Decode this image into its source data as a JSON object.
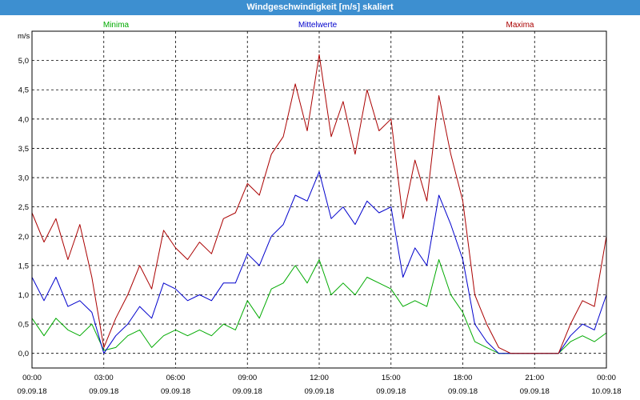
{
  "window": {
    "title": "Windgeschwindigkeit [m/s] skaliert"
  },
  "chart_data": {
    "type": "line",
    "title": "Windgeschwindigkeit [m/s] skaliert",
    "ylabel": "m/s",
    "xlabel": "",
    "ylim": [
      -0.25,
      5.5
    ],
    "yticks": [
      0.0,
      0.5,
      1.0,
      1.5,
      2.0,
      2.5,
      3.0,
      3.5,
      4.0,
      4.5,
      5.0
    ],
    "ytick_labels": [
      "0,0",
      "0,5",
      "1,0",
      "1,5",
      "2,0",
      "2,5",
      "3,0",
      "3,5",
      "4,0",
      "4,5",
      "5,0"
    ],
    "xlim_hours": [
      0,
      24
    ],
    "xticks_hours": [
      0,
      3,
      6,
      9,
      12,
      15,
      18,
      21,
      24
    ],
    "xtick_times": [
      "00:00",
      "03:00",
      "06:00",
      "09:00",
      "12:00",
      "15:00",
      "18:00",
      "21:00",
      "00:00"
    ],
    "xtick_dates": [
      "09.09.18",
      "09.09.18",
      "09.09.18",
      "09.09.18",
      "09.09.18",
      "09.09.18",
      "09.09.18",
      "09.09.18",
      "10.09.18"
    ],
    "grid": true,
    "legend_position": "top",
    "series": [
      {
        "name": "Minima",
        "color": "#00aa00",
        "x": [
          0,
          0.5,
          1,
          1.5,
          2,
          2.5,
          3,
          3.5,
          4,
          4.5,
          5,
          5.5,
          6,
          6.5,
          7,
          7.5,
          8,
          8.5,
          9,
          9.5,
          10,
          10.5,
          11,
          11.5,
          12,
          12.5,
          13,
          13.5,
          14,
          14.5,
          15,
          15.5,
          16,
          16.5,
          17,
          17.5,
          18,
          18.5,
          19,
          19.5,
          20,
          20.5,
          21,
          21.5,
          22,
          22.5,
          23,
          23.5,
          24
        ],
        "values": [
          0.6,
          0.3,
          0.6,
          0.4,
          0.3,
          0.5,
          0.05,
          0.1,
          0.3,
          0.4,
          0.1,
          0.3,
          0.4,
          0.3,
          0.4,
          0.3,
          0.5,
          0.4,
          0.9,
          0.6,
          1.1,
          1.2,
          1.5,
          1.2,
          1.6,
          1.0,
          1.2,
          1.0,
          1.3,
          1.2,
          1.1,
          0.8,
          0.9,
          0.8,
          1.6,
          1.0,
          0.7,
          0.2,
          0.1,
          0.0,
          0.0,
          0.0,
          0.0,
          0.0,
          0.0,
          0.2,
          0.3,
          0.2,
          0.35
        ]
      },
      {
        "name": "Mittelwerte",
        "color": "#0000cc",
        "x": [
          0,
          0.5,
          1,
          1.5,
          2,
          2.5,
          3,
          3.5,
          4,
          4.5,
          5,
          5.5,
          6,
          6.5,
          7,
          7.5,
          8,
          8.5,
          9,
          9.5,
          10,
          10.5,
          11,
          11.5,
          12,
          12.5,
          13,
          13.5,
          14,
          14.5,
          15,
          15.5,
          16,
          16.5,
          17,
          17.5,
          18,
          18.5,
          19,
          19.5,
          20,
          20.5,
          21,
          21.5,
          22,
          22.5,
          23,
          23.5,
          24
        ],
        "values": [
          1.3,
          0.9,
          1.3,
          0.8,
          0.9,
          0.7,
          0.0,
          0.3,
          0.5,
          0.8,
          0.6,
          1.2,
          1.1,
          0.9,
          1.0,
          0.9,
          1.2,
          1.2,
          1.7,
          1.5,
          2.0,
          2.2,
          2.7,
          2.6,
          3.1,
          2.3,
          2.5,
          2.2,
          2.6,
          2.4,
          2.5,
          1.3,
          1.8,
          1.5,
          2.7,
          2.2,
          1.6,
          0.5,
          0.2,
          0.0,
          0.0,
          0.0,
          0.0,
          0.0,
          0.0,
          0.3,
          0.5,
          0.4,
          1.0
        ]
      },
      {
        "name": "Maxima",
        "color": "#aa0000",
        "x": [
          0,
          0.5,
          1,
          1.5,
          2,
          2.5,
          3,
          3.5,
          4,
          4.5,
          5,
          5.5,
          6,
          6.5,
          7,
          7.5,
          8,
          8.5,
          9,
          9.5,
          10,
          10.5,
          11,
          11.5,
          12,
          12.5,
          13,
          13.5,
          14,
          14.5,
          15,
          15.5,
          16,
          16.5,
          17,
          17.5,
          18,
          18.5,
          19,
          19.5,
          20,
          20.5,
          21,
          21.5,
          22,
          22.5,
          23,
          23.5,
          24
        ],
        "values": [
          2.4,
          1.9,
          2.3,
          1.6,
          2.2,
          1.3,
          0.1,
          0.6,
          1.0,
          1.5,
          1.1,
          2.1,
          1.8,
          1.6,
          1.9,
          1.7,
          2.3,
          2.4,
          2.9,
          2.7,
          3.4,
          3.7,
          4.6,
          3.8,
          5.1,
          3.7,
          4.3,
          3.4,
          4.5,
          3.8,
          4.0,
          2.3,
          3.3,
          2.6,
          4.4,
          3.4,
          2.6,
          1.0,
          0.5,
          0.1,
          0.0,
          0.0,
          0.0,
          0.0,
          0.0,
          0.5,
          0.9,
          0.8,
          2.0
        ]
      }
    ]
  }
}
